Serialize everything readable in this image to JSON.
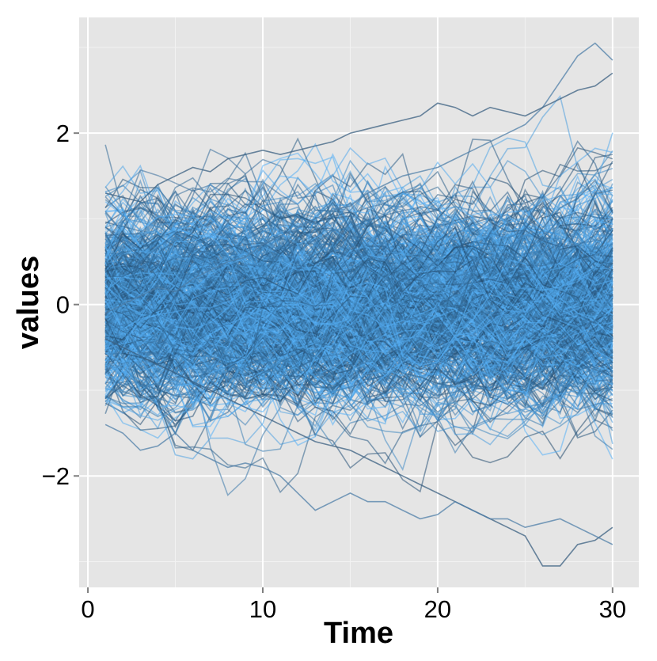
{
  "chart_data": {
    "type": "line",
    "xlabel": "Time",
    "ylabel": "values",
    "xlim": [
      -0.5,
      31.5
    ],
    "ylim": [
      -3.3,
      3.35
    ],
    "x_ticks": [
      0,
      10,
      20,
      30
    ],
    "x_tick_labels": [
      "0",
      "10",
      "20",
      "30"
    ],
    "y_ticks": [
      -2,
      0,
      2
    ],
    "y_tick_labels": [
      "−2",
      "0",
      "2"
    ],
    "x_range": [
      1,
      30
    ],
    "series_count": 600,
    "color_range": [
      "#132B43",
      "#56B1F7"
    ],
    "background": "#E5E5E5",
    "gridlines": "white",
    "legend": "none",
    "highlighted_series": [
      {
        "x": [
          1,
          2,
          3,
          4,
          5,
          6,
          7,
          8,
          9,
          10,
          11,
          12,
          13,
          14,
          15,
          16,
          17,
          18,
          19,
          20,
          21,
          22,
          23,
          24,
          25,
          26,
          27,
          28,
          29,
          30
        ],
        "values": [
          -0.1,
          0.0,
          0.1,
          0.2,
          0.15,
          0.3,
          0.4,
          0.5,
          0.55,
          0.7,
          0.8,
          0.9,
          1.0,
          1.1,
          1.15,
          1.3,
          1.4,
          1.5,
          1.55,
          1.6,
          1.7,
          1.8,
          1.9,
          2.0,
          2.1,
          2.3,
          2.6,
          2.9,
          3.05,
          2.85
        ]
      },
      {
        "x": [
          1,
          2,
          3,
          4,
          5,
          6,
          7,
          8,
          9,
          10,
          11,
          12,
          13,
          14,
          15,
          16,
          17,
          18,
          19,
          20,
          21,
          22,
          23,
          24,
          25,
          26,
          27,
          28,
          29,
          30
        ],
        "values": [
          -0.4,
          -0.5,
          -0.6,
          -0.7,
          -0.8,
          -0.9,
          -1.0,
          -1.1,
          -1.2,
          -1.3,
          -1.4,
          -1.5,
          -1.6,
          -1.65,
          -1.7,
          -1.8,
          -1.9,
          -2.0,
          -2.1,
          -2.2,
          -2.3,
          -2.4,
          -2.5,
          -2.6,
          -2.7,
          -3.05,
          -3.05,
          -2.8,
          -2.75,
          -2.6
        ]
      },
      {
        "x": [
          1,
          2,
          3,
          4,
          5,
          6,
          7,
          8,
          9,
          10,
          11,
          12,
          13,
          14,
          15,
          16,
          17,
          18,
          19,
          20,
          21,
          22,
          23,
          24,
          25,
          26,
          27,
          28,
          29,
          30
        ],
        "values": [
          -1.4,
          -1.5,
          -1.7,
          -1.65,
          -1.5,
          -1.7,
          -1.8,
          -1.9,
          -1.85,
          -1.9,
          -2.0,
          -2.2,
          -2.4,
          -2.3,
          -2.2,
          -2.3,
          -2.3,
          -2.4,
          -2.5,
          -2.45,
          -2.3,
          -2.4,
          -2.5,
          -2.5,
          -2.6,
          -2.55,
          -2.5,
          -2.6,
          -2.7,
          -2.8
        ]
      },
      {
        "x": [
          1,
          2,
          3,
          4,
          5,
          6,
          7,
          8,
          9,
          10,
          11,
          12,
          13,
          14,
          15,
          16,
          17,
          18,
          19,
          20,
          21,
          22,
          23,
          24,
          25,
          26,
          27,
          28,
          29,
          30
        ],
        "values": [
          1.3,
          1.25,
          1.2,
          1.4,
          1.5,
          1.6,
          1.55,
          1.7,
          1.75,
          1.8,
          1.75,
          1.8,
          1.85,
          1.9,
          2.0,
          2.05,
          2.1,
          2.15,
          2.2,
          2.35,
          2.3,
          2.2,
          2.3,
          2.25,
          2.2,
          2.3,
          2.4,
          2.5,
          2.55,
          2.7
        ]
      }
    ]
  }
}
